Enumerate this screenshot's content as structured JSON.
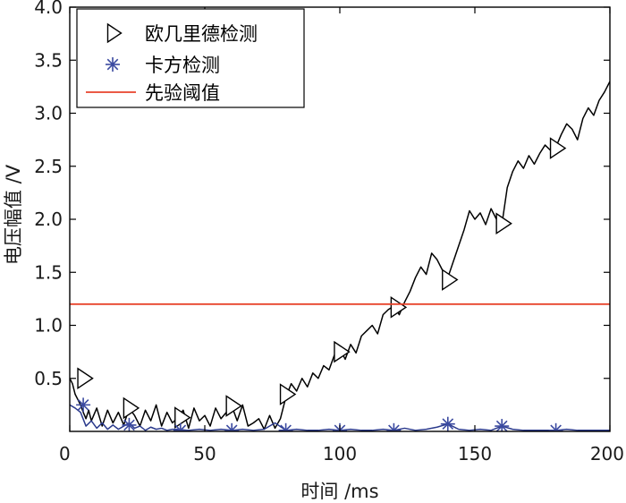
{
  "colors": {
    "euclid_line": "#000000",
    "euclid_marker": "#000000",
    "chi_line": "#2b3a8c",
    "chi_marker": "#3b4aa0",
    "threshold": "#e8432b",
    "axis": "#000000"
  },
  "chart_data": {
    "type": "line",
    "xlabel": "时间 /ms",
    "ylabel": "电压幅值 /V",
    "xlim": [
      0,
      200
    ],
    "ylim": [
      0,
      4.0
    ],
    "xticks": [
      0,
      50,
      100,
      150,
      200
    ],
    "yticks": [
      0.5,
      1.0,
      1.5,
      2.0,
      2.5,
      3.0,
      3.5,
      4.0
    ],
    "ytick_labels": [
      "0.5",
      "1.0",
      "1.5",
      "2.0",
      "2.5",
      "3.0",
      "3.5",
      "4.0"
    ],
    "xtick_labels": [
      "0",
      "50",
      "100",
      "150",
      "200"
    ],
    "grid": false,
    "legend_position": "top-left",
    "series": [
      {
        "name": "欧几里德检测",
        "marker": "triangle-right",
        "x": [
          0,
          1,
          2,
          3,
          4,
          5,
          6,
          7,
          8,
          10,
          12,
          14,
          16,
          18,
          20,
          22,
          24,
          26,
          28,
          30,
          32,
          34,
          36,
          38,
          40,
          42,
          44,
          46,
          48,
          50,
          52,
          54,
          56,
          58,
          60,
          62,
          64,
          66,
          68,
          70,
          72,
          74,
          76,
          78,
          80,
          82,
          84,
          86,
          88,
          90,
          92,
          94,
          96,
          98,
          100,
          102,
          104,
          106,
          108,
          110,
          112,
          114,
          116,
          118,
          120,
          122,
          124,
          126,
          128,
          130,
          132,
          134,
          136,
          138,
          140,
          142,
          144,
          146,
          148,
          150,
          152,
          154,
          156,
          158,
          160,
          162,
          164,
          166,
          168,
          170,
          172,
          174,
          176,
          178,
          180,
          182,
          184,
          186,
          188,
          190,
          192,
          194,
          196,
          198,
          200
        ],
        "y": [
          0.5,
          0.45,
          0.35,
          0.3,
          0.25,
          0.18,
          0.12,
          0.2,
          0.1,
          0.22,
          0.05,
          0.2,
          0.08,
          0.18,
          0.06,
          0.22,
          0.15,
          0.05,
          0.2,
          0.1,
          0.25,
          0.05,
          0.18,
          0.08,
          0.13,
          0.2,
          0.03,
          0.22,
          0.1,
          0.15,
          0.05,
          0.22,
          0.12,
          0.18,
          0.24,
          0.1,
          0.25,
          0.05,
          0.08,
          0.12,
          0.02,
          0.15,
          0.03,
          0.12,
          0.32,
          0.45,
          0.38,
          0.5,
          0.42,
          0.55,
          0.5,
          0.62,
          0.58,
          0.72,
          0.78,
          0.68,
          0.82,
          0.74,
          0.9,
          0.95,
          1.0,
          0.92,
          1.1,
          1.15,
          1.18,
          1.1,
          1.22,
          1.32,
          1.45,
          1.55,
          1.48,
          1.68,
          1.62,
          1.52,
          1.45,
          1.6,
          1.75,
          1.9,
          2.08,
          2.0,
          2.06,
          1.95,
          2.1,
          2.0,
          1.95,
          2.3,
          2.45,
          2.55,
          2.48,
          2.6,
          2.52,
          2.62,
          2.7,
          2.65,
          2.68,
          2.8,
          2.9,
          2.85,
          2.75,
          2.95,
          3.05,
          2.98,
          3.12,
          3.2,
          3.3
        ],
        "markers": [
          [
            5,
            0.5
          ],
          [
            22,
            0.22
          ],
          [
            41,
            0.13
          ],
          [
            60,
            0.24
          ],
          [
            80,
            0.35
          ],
          [
            100,
            0.75
          ],
          [
            121,
            1.17
          ],
          [
            140,
            1.43
          ],
          [
            160,
            1.96
          ],
          [
            180,
            2.67
          ]
        ]
      },
      {
        "name": "卡方检测",
        "marker": "asterisk",
        "x": [
          0,
          2,
          4,
          6,
          8,
          10,
          12,
          14,
          16,
          18,
          20,
          22,
          24,
          26,
          28,
          30,
          32,
          34,
          36,
          38,
          40,
          44,
          48,
          52,
          56,
          60,
          64,
          68,
          72,
          76,
          80,
          84,
          88,
          92,
          96,
          100,
          104,
          108,
          112,
          116,
          120,
          124,
          128,
          132,
          136,
          140,
          144,
          148,
          152,
          156,
          160,
          164,
          168,
          172,
          176,
          180,
          184,
          188,
          192,
          196,
          200
        ],
        "y": [
          0.25,
          0.22,
          0.18,
          0.05,
          0.1,
          0.03,
          0.08,
          0.02,
          0.06,
          0.02,
          0.05,
          0.08,
          0.03,
          0.05,
          0.01,
          0.04,
          0.02,
          0.03,
          0.01,
          0.02,
          0.02,
          0.01,
          0.02,
          0.01,
          0.02,
          0.01,
          0.02,
          0.01,
          0.02,
          0.08,
          0.01,
          0.02,
          0.01,
          0.01,
          0.02,
          0.01,
          0.02,
          0.01,
          0.01,
          0.02,
          0.01,
          0.03,
          0.01,
          0.02,
          0.04,
          0.07,
          0.02,
          0.01,
          0.02,
          0.01,
          0.05,
          0.02,
          0.01,
          0.01,
          0.01,
          0.01,
          0.02,
          0.01,
          0.01,
          0.01,
          0.01
        ],
        "markers": [
          [
            5,
            0.25
          ],
          [
            22,
            0.06
          ],
          [
            41,
            0.01
          ],
          [
            60,
            0.01
          ],
          [
            80,
            0.01
          ],
          [
            100,
            0.01
          ],
          [
            120,
            0.01
          ],
          [
            140,
            0.07
          ],
          [
            160,
            0.05
          ],
          [
            180,
            0.01
          ]
        ]
      },
      {
        "name": "先验阈值",
        "marker": "none",
        "x": [
          0,
          200
        ],
        "y": [
          1.2,
          1.2
        ]
      }
    ]
  }
}
